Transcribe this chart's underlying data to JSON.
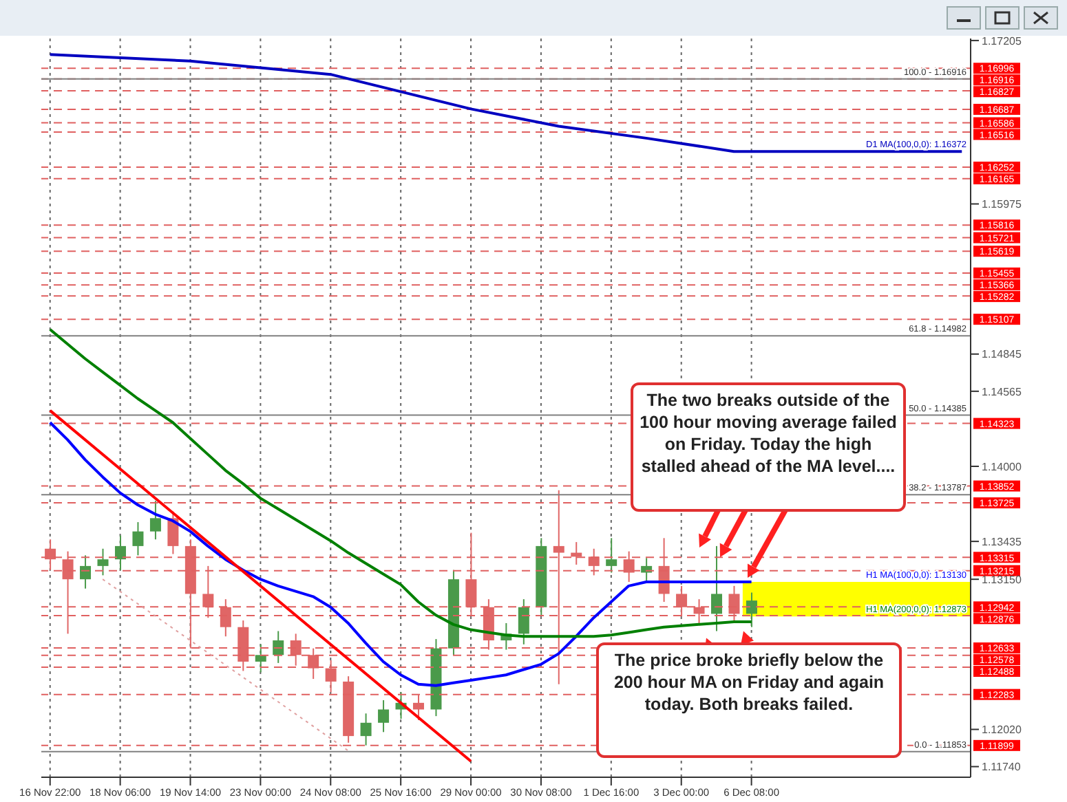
{
  "chart_data": {
    "type": "candlestick",
    "categories": [
      "16 Nov 22:00",
      null,
      null,
      null,
      "18 Nov 06:00",
      null,
      null,
      null,
      "19 Nov 14:00",
      null,
      null,
      null,
      "23 Nov 00:00",
      null,
      null,
      null,
      "24 Nov 08:00",
      null,
      null,
      null,
      "25 Nov 16:00",
      null,
      null,
      null,
      "29 Nov 00:00",
      null,
      null,
      null,
      "30 Nov 08:00",
      null,
      null,
      null,
      "1 Dec 16:00",
      null,
      null,
      null,
      "3 Dec 00:00",
      null,
      null,
      null,
      "6 Dec 08:00",
      null,
      null,
      null,
      null,
      null,
      null,
      null,
      null,
      null,
      null,
      null,
      null
    ],
    "ohlc": [
      [
        1.1338,
        1.1345,
        1.1322,
        1.133
      ],
      [
        1.133,
        1.1336,
        1.1274,
        1.1315
      ],
      [
        1.1315,
        1.1333,
        1.1308,
        1.1325
      ],
      [
        1.1325,
        1.1338,
        1.1318,
        1.133
      ],
      [
        1.133,
        1.1348,
        1.1322,
        1.134
      ],
      [
        1.134,
        1.1358,
        1.1333,
        1.1351
      ],
      [
        1.1351,
        1.1374,
        1.1345,
        1.1361
      ],
      [
        1.1361,
        1.1366,
        1.1334,
        1.134
      ],
      [
        1.134,
        1.1345,
        1.1263,
        1.1304
      ],
      [
        1.1304,
        1.1325,
        1.1286,
        1.1294
      ],
      [
        1.1294,
        1.13,
        1.1272,
        1.1279
      ],
      [
        1.1279,
        1.1284,
        1.1246,
        1.1253
      ],
      [
        1.1253,
        1.1266,
        1.1245,
        1.1258
      ],
      [
        1.1258,
        1.1276,
        1.1252,
        1.1269
      ],
      [
        1.1269,
        1.1274,
        1.125,
        1.1258
      ],
      [
        1.1258,
        1.1263,
        1.124,
        1.1248
      ],
      [
        1.1248,
        1.1254,
        1.123,
        1.1238
      ],
      [
        1.1238,
        1.1242,
        1.1192,
        1.1197
      ],
      [
        1.1197,
        1.1214,
        1.119,
        1.1207
      ],
      [
        1.1207,
        1.1224,
        1.12,
        1.1217
      ],
      [
        1.1217,
        1.123,
        1.121,
        1.1222
      ],
      [
        1.1222,
        1.1228,
        1.1209,
        1.1217
      ],
      [
        1.1217,
        1.127,
        1.1212,
        1.1263
      ],
      [
        1.1263,
        1.1322,
        1.1258,
        1.1315
      ],
      [
        1.1315,
        1.135,
        1.1288,
        1.1294
      ],
      [
        1.1294,
        1.13,
        1.1262,
        1.1269
      ],
      [
        1.1269,
        1.1282,
        1.1262,
        1.1274
      ],
      [
        1.1274,
        1.13,
        1.1266,
        1.1294
      ],
      [
        1.1294,
        1.1346,
        1.1288,
        1.134
      ],
      [
        1.134,
        1.1382,
        1.1236,
        1.1335
      ],
      [
        1.1335,
        1.1343,
        1.1326,
        1.1332
      ],
      [
        1.1332,
        1.1338,
        1.1318,
        1.1325
      ],
      [
        1.1325,
        1.1346,
        1.132,
        1.133
      ],
      [
        1.133,
        1.1336,
        1.1313,
        1.132
      ],
      [
        1.132,
        1.1331,
        1.1314,
        1.1325
      ],
      [
        1.1325,
        1.1346,
        1.1298,
        1.1304
      ],
      [
        1.1304,
        1.131,
        1.1287,
        1.1294
      ],
      [
        1.1294,
        1.13,
        1.1282,
        1.1289
      ],
      [
        1.1289,
        1.134,
        1.1276,
        1.1304
      ],
      [
        1.1304,
        1.131,
        1.1282,
        1.1289
      ],
      [
        1.1289,
        1.1305,
        1.1279,
        1.1299
      ],
      null,
      null,
      null,
      null,
      null,
      null,
      null,
      null,
      null,
      null,
      null,
      null
    ],
    "series": [
      {
        "type": "line",
        "color": "#0000ff",
        "values": [
          1.1433,
          1.142,
          1.1405,
          1.1392,
          1.138,
          1.1371,
          1.1364,
          1.1359,
          1.1351,
          1.134,
          1.133,
          1.1322,
          1.1315,
          1.131,
          1.1306,
          1.1302,
          1.1294,
          1.1282,
          1.1267,
          1.1253,
          1.1243,
          1.1236,
          1.1235,
          1.1237,
          1.1239,
          1.1241,
          1.1243,
          1.1247,
          1.1251,
          1.1259,
          1.1272,
          1.1286,
          1.1298,
          1.131,
          1.1313,
          1.1313,
          1.1313,
          1.1313,
          1.1313,
          1.1313,
          1.1313,
          null,
          null,
          null,
          null,
          null,
          null,
          null,
          null,
          null,
          null,
          null,
          null
        ]
      },
      {
        "type": "line",
        "color": "#008000",
        "values": [
          1.1503,
          1.1492,
          1.1481,
          1.1471,
          1.1461,
          1.1451,
          1.1442,
          1.1433,
          1.1421,
          1.1409,
          1.1397,
          1.1387,
          1.1376,
          1.1368,
          1.136,
          1.1352,
          1.1344,
          1.1335,
          1.1327,
          1.1319,
          1.1311,
          1.1298,
          1.1288,
          1.1281,
          1.1277,
          1.1275,
          1.1273,
          1.1272,
          1.1272,
          1.1272,
          1.1272,
          1.1272,
          1.1273,
          1.1275,
          1.1277,
          1.1279,
          1.128,
          1.1281,
          1.1282,
          1.1283,
          1.1283,
          null,
          null,
          null,
          null,
          null,
          null,
          null,
          null,
          null,
          null,
          null,
          null
        ]
      },
      {
        "type": "line",
        "color": "#ff0000",
        "values": [
          1.1442,
          null,
          null,
          null,
          null,
          null,
          null,
          null,
          null,
          null,
          null,
          null,
          null,
          null,
          null,
          null,
          null,
          null,
          null,
          null,
          null,
          null,
          null,
          null,
          1.1178,
          null,
          null,
          null,
          null,
          null,
          null,
          null,
          null,
          null,
          null,
          null,
          null,
          null,
          null,
          null,
          null,
          null,
          null,
          null,
          null,
          null,
          null,
          null,
          null,
          null,
          null,
          null,
          null
        ]
      },
      {
        "type": "line",
        "color": "#e0a0a0",
        "line_style": "dotted",
        "values": [
          null,
          null,
          null,
          1.1315,
          null,
          null,
          null,
          null,
          null,
          null,
          null,
          null,
          null,
          null,
          null,
          null,
          null,
          1.1186,
          null,
          null,
          null,
          null,
          null,
          null,
          null,
          null,
          null,
          null,
          null,
          null,
          null,
          null,
          null,
          null,
          null,
          null,
          null,
          null,
          null,
          null,
          null,
          null,
          null,
          null,
          null,
          null,
          null,
          null,
          null,
          null,
          null,
          null,
          null
        ]
      },
      {
        "type": "line",
        "color": "#0000c0",
        "values": [
          1.171,
          null,
          null,
          null,
          null,
          null,
          null,
          null,
          1.1705,
          null,
          null,
          null,
          null,
          null,
          null,
          null,
          1.1695,
          null,
          null,
          null,
          null,
          null,
          null,
          null,
          1.1669,
          null,
          null,
          null,
          null,
          1.1656,
          null,
          null,
          null,
          null,
          1.1647,
          null,
          null,
          null,
          null,
          1.1637,
          null,
          null,
          null,
          null,
          null,
          null,
          null,
          null,
          null,
          null,
          null,
          null,
          1.1637
        ]
      }
    ],
    "ylim": [
      1.1166,
      1.1722
    ],
    "yticks": [
      1.17205,
      1.15975,
      1.14845,
      1.14565,
      {
        "value": 1.14,
        "label": "1.14000"
      },
      1.13435,
      {
        "value": 1.1315,
        "label": "1.13150"
      },
      {
        "value": 1.1202,
        "label": "1.12020"
      },
      {
        "value": 1.1174,
        "label": "1.11740"
      }
    ],
    "grid": "x",
    "bands": [
      {
        "axis": "y",
        "from": 1.1287,
        "to": 1.1313,
        "color": "#ffff00"
      }
    ],
    "ref_lines": [
      {
        "axis": "y",
        "value": 1.16996,
        "label": "1.16996",
        "color": "#e06060",
        "line_style": "dashed"
      },
      {
        "axis": "y",
        "value": 1.16916,
        "label": "1.16916",
        "color": "#e06060",
        "line_style": "dashed"
      },
      {
        "axis": "y",
        "value": 1.16827,
        "label": "1.16827",
        "color": "#e06060",
        "line_style": "dashed"
      },
      {
        "axis": "y",
        "value": 1.16687,
        "label": "1.16687",
        "color": "#e06060",
        "line_style": "dashed"
      },
      {
        "axis": "y",
        "value": 1.16586,
        "label": "1.16586",
        "color": "#e06060",
        "line_style": "dashed"
      },
      {
        "axis": "y",
        "value": 1.16516,
        "label": "1.16516",
        "color": "#e06060",
        "line_style": "dashed"
      },
      {
        "axis": "y",
        "value": 1.16252,
        "label": "1.16252",
        "color": "#e06060",
        "line_style": "dashed"
      },
      {
        "axis": "y",
        "value": 1.16165,
        "label": "1.16165",
        "color": "#e06060",
        "line_style": "dashed"
      },
      {
        "axis": "y",
        "value": 1.15816,
        "label": "1.15816",
        "color": "#e06060",
        "line_style": "dashed"
      },
      {
        "axis": "y",
        "value": 1.15721,
        "label": "1.15721",
        "color": "#e06060",
        "line_style": "dashed"
      },
      {
        "axis": "y",
        "value": 1.15619,
        "label": "1.15619",
        "color": "#e06060",
        "line_style": "dashed"
      },
      {
        "axis": "y",
        "value": 1.15455,
        "label": "1.15455",
        "color": "#e06060",
        "line_style": "dashed"
      },
      {
        "axis": "y",
        "value": 1.15366,
        "label": "1.15366",
        "color": "#e06060",
        "line_style": "dashed"
      },
      {
        "axis": "y",
        "value": 1.15282,
        "label": "1.15282",
        "color": "#e06060",
        "line_style": "dashed"
      },
      {
        "axis": "y",
        "value": 1.15107,
        "label": "1.15107",
        "color": "#e06060",
        "line_style": "dashed"
      },
      {
        "axis": "y",
        "value": 1.14323,
        "label": "1.14323",
        "color": "#e06060",
        "line_style": "dashed"
      },
      {
        "axis": "y",
        "value": 1.13852,
        "label": "1.13852",
        "color": "#e06060",
        "line_style": "dashed"
      },
      {
        "axis": "y",
        "value": 1.13725,
        "label": "1.13725",
        "color": "#e06060",
        "line_style": "dashed"
      },
      {
        "axis": "y",
        "value": 1.13315,
        "label": "1.13315",
        "color": "#e06060",
        "line_style": "dashed"
      },
      {
        "axis": "y",
        "value": 1.13215,
        "label": "1.13215",
        "color": "#e06060",
        "line_style": "dashed"
      },
      {
        "axis": "y",
        "value": 1.12942,
        "label": "1.12942",
        "color": "#e06060",
        "line_style": "dashed"
      },
      {
        "axis": "y",
        "value": 1.12876,
        "label": "1.12876",
        "color": "#e06060",
        "line_style": "dashed"
      },
      {
        "axis": "y",
        "value": 1.12633,
        "label": "1.12633",
        "color": "#e06060",
        "line_style": "dashed"
      },
      {
        "axis": "y",
        "value": 1.12578,
        "label": "1.12578",
        "color": "#e06060",
        "line_style": "dashed"
      },
      {
        "axis": "y",
        "value": 1.12488,
        "label": "1.12488",
        "color": "#e06060",
        "line_style": "dashed"
      },
      {
        "axis": "y",
        "value": 1.12283,
        "label": "1.12283",
        "color": "#e06060",
        "line_style": "dashed"
      },
      {
        "axis": "y",
        "value": 1.11899,
        "label": "1.11899",
        "color": "#e06060",
        "line_style": "dashed"
      },
      {
        "axis": "y",
        "value": 1.16916,
        "color": "#808080",
        "line_style": "solid"
      },
      {
        "axis": "y",
        "value": 1.14982,
        "color": "#808080",
        "line_style": "solid"
      },
      {
        "axis": "y",
        "value": 1.14385,
        "color": "#808080",
        "line_style": "solid"
      },
      {
        "axis": "y",
        "value": 1.13787,
        "color": "#808080",
        "line_style": "solid"
      },
      {
        "axis": "y",
        "value": 1.11853,
        "color": "#808080",
        "line_style": "solid"
      }
    ],
    "annotations": [
      "The two breaks outside of the 100 hour moving average failed on Friday. Today the high stalled ahead of the MA level....",
      {
        "text": "The price broke briefly below the 200 hour MA on Friday and again today. Both breaks failed.",
        "y": 1.1275
      },
      {
        "text": "100.0 - 1.16916",
        "y": 1.16916
      },
      {
        "text": "61.8 - 1.14982",
        "y": 1.14982
      },
      {
        "text": "50.0 - 1.14385",
        "y": 1.14385
      },
      {
        "text": "38.2 - 1.13787",
        "y": 1.13787
      },
      {
        "text": "0.0 - 1.11853",
        "y": 1.11853
      },
      {
        "text": "D1 MA(100,0,0): 1.16372",
        "y": 1.16372
      },
      {
        "text": "H1 MA(100,0,0): 1.13130",
        "y": 1.1313
      },
      {
        "text": "H1 MA(200,0,0): 1.12873",
        "y": 1.12873
      }
    ],
    "marker": "none"
  }
}
